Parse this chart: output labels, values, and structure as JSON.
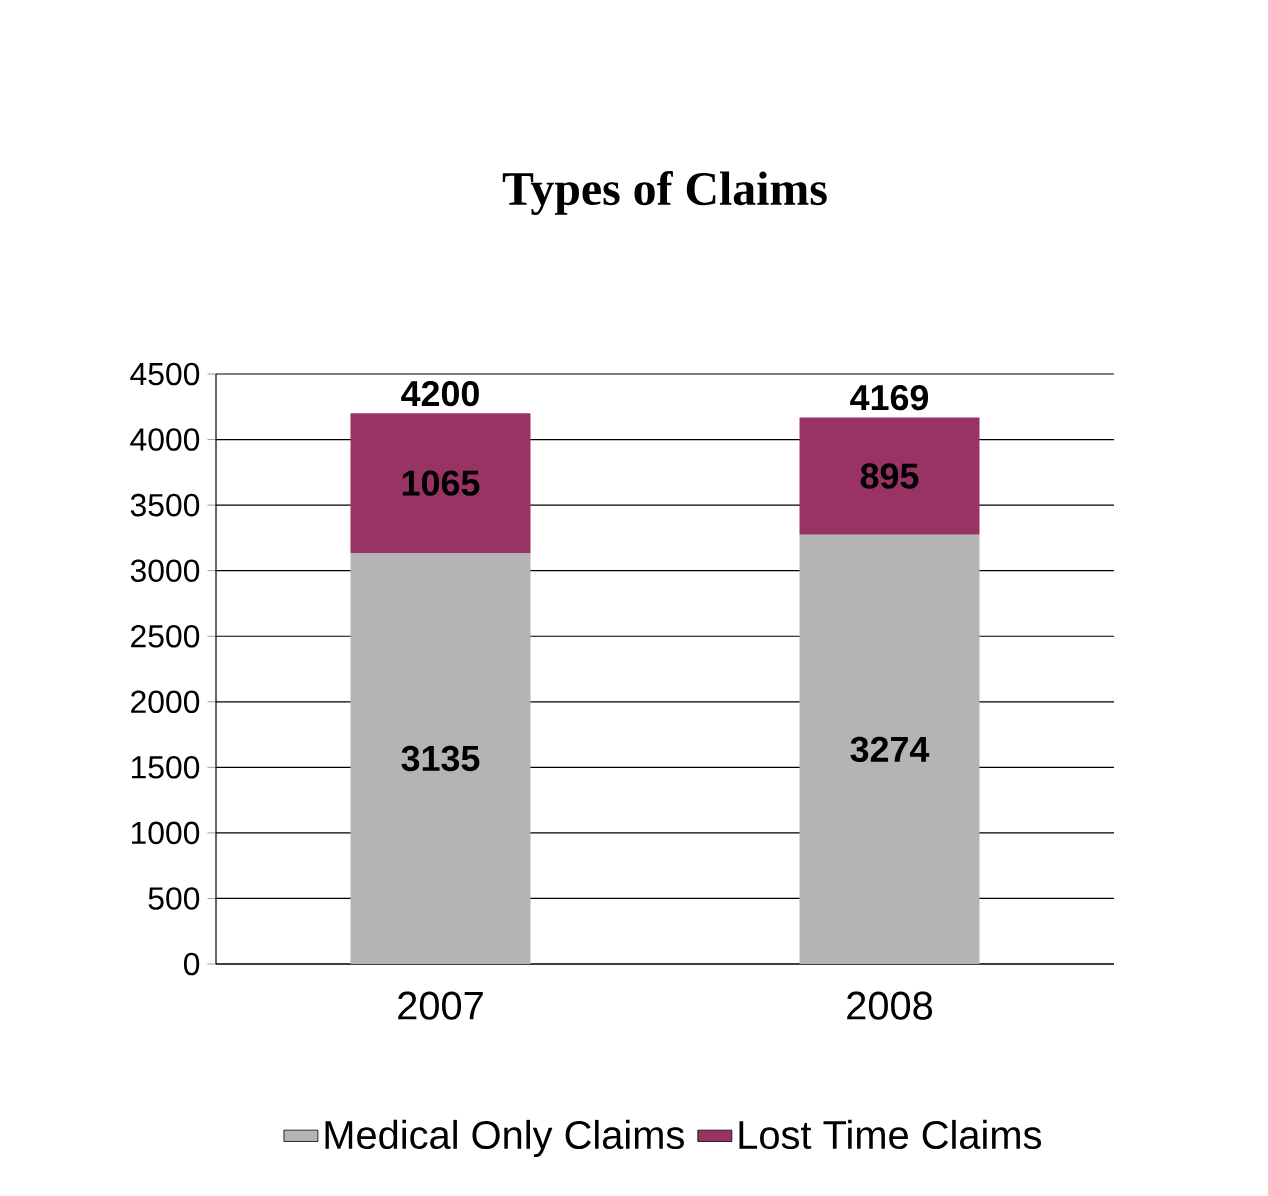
{
  "chart_data": {
    "type": "bar",
    "title": "Types of Claims",
    "categories": [
      "2007",
      "2008"
    ],
    "stacked": true,
    "series": [
      {
        "name": "Medical Only Claims",
        "color": "#b4b4b4",
        "values": [
          3135,
          3274
        ]
      },
      {
        "name": "Lost Time Claims",
        "color": "#993366",
        "values": [
          1065,
          895
        ]
      }
    ],
    "ylim": [
      0,
      4500
    ],
    "yticks": [
      0,
      500,
      1000,
      1500,
      2000,
      2500,
      3000,
      3500,
      4000,
      4500
    ],
    "grid": "y",
    "legend": "bottom",
    "data_labels": true,
    "totals": [
      "4200",
      "4169"
    ]
  }
}
